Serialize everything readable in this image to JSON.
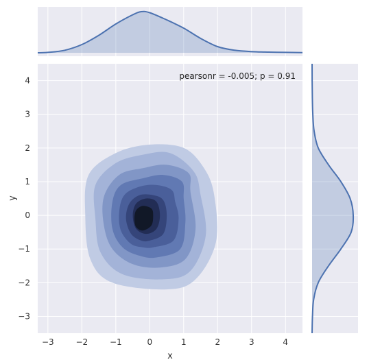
{
  "chart_data": {
    "type": "kde-joint",
    "xlabel": "x",
    "ylabel": "y",
    "xlim": [
      -3.3,
      4.5
    ],
    "ylim": [
      -3.5,
      4.5
    ],
    "xticks": [
      -3,
      -2,
      -1,
      0,
      1,
      2,
      3,
      4
    ],
    "yticks": [
      -3,
      -2,
      -1,
      0,
      1,
      2,
      3,
      4
    ],
    "annotation": "pearsonr = -0.005; p = 0.91",
    "grid": true,
    "colors": {
      "background": "#eaeaf2",
      "grid": "#ffffff",
      "line": "#4c72b0",
      "marginal_fill": "rgba(76,114,176,0.25)",
      "levels": [
        "#c0cbe4",
        "#a3b3d8",
        "#8196c6",
        "#6179b3",
        "#4a5f9a",
        "#35457a",
        "#222d55",
        "#111827"
      ]
    },
    "contours": [
      [
        [
          0.5,
          -2.2
        ],
        [
          1.35,
          -1.9
        ],
        [
          1.95,
          -0.8
        ],
        [
          1.9,
          0.6
        ],
        [
          1.6,
          1.4
        ],
        [
          1.0,
          2.0
        ],
        [
          0.0,
          2.1
        ],
        [
          -1.0,
          1.85
        ],
        [
          -1.8,
          1.2
        ],
        [
          -1.9,
          0.0
        ],
        [
          -1.75,
          -1.3
        ],
        [
          -1.1,
          -2.0
        ]
      ],
      [
        [
          0.4,
          -1.9
        ],
        [
          1.2,
          -1.65
        ],
        [
          1.65,
          -0.6
        ],
        [
          1.5,
          0.6
        ],
        [
          1.3,
          1.3
        ],
        [
          0.6,
          1.85
        ],
        [
          -0.2,
          1.8
        ],
        [
          -1.0,
          1.55
        ],
        [
          -1.6,
          0.9
        ],
        [
          -1.6,
          -0.1
        ],
        [
          -1.45,
          -1.1
        ],
        [
          -0.8,
          -1.75
        ]
      ],
      [
        [
          0.3,
          -1.55
        ],
        [
          1.05,
          -1.3
        ],
        [
          1.35,
          -0.4
        ],
        [
          1.2,
          0.7
        ],
        [
          1.15,
          1.25
        ],
        [
          0.5,
          1.5
        ],
        [
          -0.2,
          1.4
        ],
        [
          -0.9,
          1.2
        ],
        [
          -1.35,
          0.55
        ],
        [
          -1.35,
          -0.3
        ],
        [
          -1.1,
          -1.0
        ],
        [
          -0.5,
          -1.45
        ]
      ],
      [
        [
          0.2,
          -1.25
        ],
        [
          0.9,
          -1.0
        ],
        [
          1.05,
          -0.2
        ],
        [
          1.0,
          0.5
        ],
        [
          0.95,
          1.0
        ],
        [
          0.4,
          1.2
        ],
        [
          -0.2,
          1.1
        ],
        [
          -0.85,
          0.9
        ],
        [
          -1.1,
          0.4
        ],
        [
          -1.1,
          -0.4
        ],
        [
          -0.8,
          -0.95
        ],
        [
          -0.3,
          -1.2
        ]
      ],
      [
        [
          0.1,
          -0.95
        ],
        [
          0.7,
          -0.75
        ],
        [
          0.85,
          -0.1
        ],
        [
          0.75,
          0.4
        ],
        [
          0.65,
          0.75
        ],
        [
          0.2,
          0.9
        ],
        [
          -0.3,
          0.85
        ],
        [
          -0.75,
          0.6
        ],
        [
          -0.9,
          0.1
        ],
        [
          -0.85,
          -0.45
        ],
        [
          -0.55,
          -0.85
        ],
        [
          -0.2,
          -0.95
        ]
      ],
      [
        [
          0.0,
          -0.75
        ],
        [
          0.4,
          -0.55
        ],
        [
          0.5,
          0.0
        ],
        [
          0.4,
          0.45
        ],
        [
          0.1,
          0.6
        ],
        [
          -0.3,
          0.6
        ],
        [
          -0.6,
          0.35
        ],
        [
          -0.7,
          -0.1
        ],
        [
          -0.55,
          -0.55
        ],
        [
          -0.25,
          -0.75
        ]
      ],
      [
        [
          -0.1,
          -0.55
        ],
        [
          0.2,
          -0.4
        ],
        [
          0.3,
          0.0
        ],
        [
          0.2,
          0.4
        ],
        [
          -0.1,
          0.5
        ],
        [
          -0.4,
          0.35
        ],
        [
          -0.5,
          0.0
        ],
        [
          -0.4,
          -0.4
        ]
      ],
      [
        [
          -0.2,
          -0.45
        ],
        [
          0.05,
          -0.3
        ],
        [
          0.1,
          0.0
        ],
        [
          0.05,
          0.2
        ],
        [
          -0.2,
          0.28
        ],
        [
          -0.4,
          0.15
        ],
        [
          -0.45,
          -0.1
        ],
        [
          -0.4,
          -0.35
        ]
      ]
    ],
    "marginal_x": {
      "x": [
        -3.3,
        -3.0,
        -2.5,
        -2.0,
        -1.5,
        -1.0,
        -0.5,
        -0.25,
        0.0,
        0.5,
        1.0,
        1.5,
        2.0,
        2.5,
        3.0,
        3.5,
        4.0,
        4.5
      ],
      "density": [
        0.0,
        0.004,
        0.025,
        0.08,
        0.17,
        0.28,
        0.37,
        0.4,
        0.39,
        0.32,
        0.24,
        0.14,
        0.06,
        0.025,
        0.012,
        0.007,
        0.004,
        0.002
      ]
    },
    "marginal_y": {
      "y": [
        -3.5,
        -3.0,
        -2.5,
        -2.0,
        -1.5,
        -1.0,
        -0.5,
        0.0,
        0.5,
        1.0,
        1.5,
        2.0,
        2.5,
        3.0,
        3.5,
        4.0,
        4.5
      ],
      "density": [
        0.0,
        0.004,
        0.015,
        0.06,
        0.16,
        0.28,
        0.38,
        0.4,
        0.37,
        0.28,
        0.16,
        0.06,
        0.02,
        0.007,
        0.003,
        0.001,
        0.0
      ]
    }
  }
}
